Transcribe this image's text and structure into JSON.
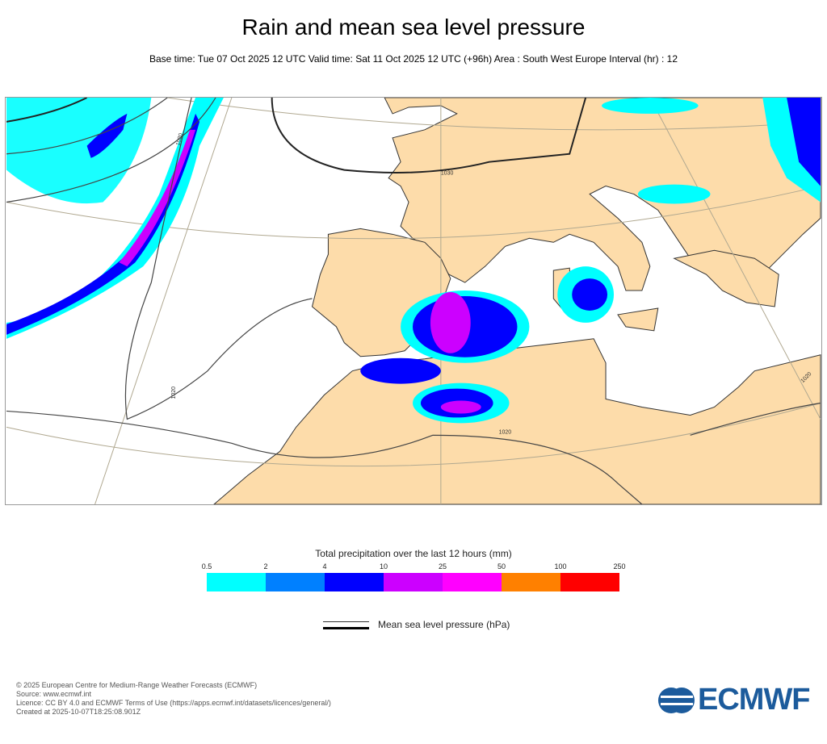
{
  "header": {
    "title": "Rain and mean sea level pressure",
    "subtitle": "Base time: Tue 07 Oct 2025 12 UTC Valid time: Sat 11 Oct 2025 12 UTC (+96h) Area : South West Europe Interval (hr) : 12"
  },
  "map": {
    "area": "South West Europe",
    "land_color": "#fddcaa",
    "sea_color": "#ffffff",
    "isobar_labels": [
      "1030",
      "1020",
      "1020",
      "1020",
      "1020"
    ]
  },
  "legend": {
    "title": "Total precipitation over the last 12 hours (mm)",
    "ticks": [
      "0.5",
      "2",
      "4",
      "10",
      "25",
      "50",
      "100",
      "250"
    ],
    "colors": [
      "#00ffff",
      "#0080ff",
      "#0000ff",
      "#cc00ff",
      "#ff00ff",
      "#ff8000",
      "#ff0000"
    ],
    "pressure_label": "Mean sea level pressure (hPa)"
  },
  "footer": {
    "copyright": "© 2025 European Centre for Medium-Range Weather Forecasts (ECMWF)",
    "source": "Source: www.ecmwf.int",
    "licence": "Licence: CC BY 4.0 and ECMWF Terms of Use (https://apps.ecmwf.int/datasets/licences/general/)",
    "created": "Created at 2025-10-07T18:25:08.901Z",
    "logo_text": "ECMWF"
  }
}
